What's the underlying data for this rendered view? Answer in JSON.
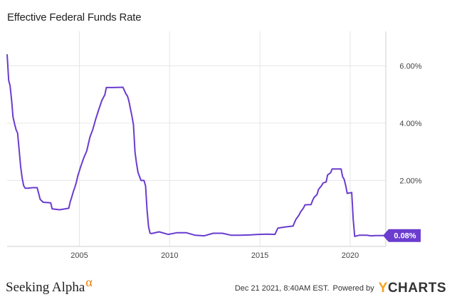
{
  "chart_data": {
    "type": "line",
    "title": "Effective Federal Funds Rate",
    "xlabel": "",
    "ylabel": "",
    "x_range": [
      "2001-01-01",
      "2021-12-21"
    ],
    "ylim": [
      -0.3,
      7.2
    ],
    "x_ticks": [
      "2005",
      "2010",
      "2015",
      "2020"
    ],
    "y_ticks": [
      "2.00%",
      "4.00%",
      "6.00%"
    ],
    "y_tick_values": [
      2,
      4,
      6
    ],
    "grid": "vertical and horizontal",
    "line_color": "#6a3ccf",
    "last_value_label": "0.08%",
    "series": [
      {
        "name": "",
        "points": [
          [
            "2001-01-01",
            6.4
          ],
          [
            "2001-02-01",
            5.49
          ],
          [
            "2001-03-01",
            5.31
          ],
          [
            "2001-04-01",
            4.8
          ],
          [
            "2001-05-01",
            4.21
          ],
          [
            "2001-06-01",
            3.97
          ],
          [
            "2001-07-01",
            3.77
          ],
          [
            "2001-08-01",
            3.65
          ],
          [
            "2001-09-01",
            3.07
          ],
          [
            "2001-10-01",
            2.49
          ],
          [
            "2001-11-01",
            2.09
          ],
          [
            "2001-12-01",
            1.82
          ],
          [
            "2002-01-01",
            1.73
          ],
          [
            "2002-03-01",
            1.73
          ],
          [
            "2002-06-01",
            1.75
          ],
          [
            "2002-09-01",
            1.75
          ],
          [
            "2002-11-01",
            1.34
          ],
          [
            "2003-01-01",
            1.24
          ],
          [
            "2003-06-01",
            1.22
          ],
          [
            "2003-07-01",
            1.01
          ],
          [
            "2003-12-01",
            0.98
          ],
          [
            "2004-06-01",
            1.03
          ],
          [
            "2004-07-01",
            1.26
          ],
          [
            "2004-08-01",
            1.43
          ],
          [
            "2004-09-01",
            1.61
          ],
          [
            "2004-10-01",
            1.76
          ],
          [
            "2004-11-01",
            1.93
          ],
          [
            "2004-12-01",
            2.16
          ],
          [
            "2005-02-01",
            2.5
          ],
          [
            "2005-04-01",
            2.79
          ],
          [
            "2005-06-01",
            3.04
          ],
          [
            "2005-08-01",
            3.5
          ],
          [
            "2005-10-01",
            3.78
          ],
          [
            "2005-12-01",
            4.16
          ],
          [
            "2006-02-01",
            4.49
          ],
          [
            "2006-04-01",
            4.79
          ],
          [
            "2006-06-01",
            4.99
          ],
          [
            "2006-07-01",
            5.24
          ],
          [
            "2006-12-01",
            5.24
          ],
          [
            "2007-06-01",
            5.25
          ],
          [
            "2007-08-01",
            5.02
          ],
          [
            "2007-09-01",
            4.94
          ],
          [
            "2007-10-01",
            4.76
          ],
          [
            "2007-11-01",
            4.49
          ],
          [
            "2007-12-01",
            4.24
          ],
          [
            "2008-01-01",
            3.94
          ],
          [
            "2008-02-01",
            2.98
          ],
          [
            "2008-03-01",
            2.61
          ],
          [
            "2008-04-01",
            2.28
          ],
          [
            "2008-06-01",
            2.0
          ],
          [
            "2008-08-01",
            2.0
          ],
          [
            "2008-09-01",
            1.81
          ],
          [
            "2008-10-01",
            0.97
          ],
          [
            "2008-11-01",
            0.39
          ],
          [
            "2008-12-01",
            0.16
          ],
          [
            "2009-01-01",
            0.15
          ],
          [
            "2009-06-01",
            0.21
          ],
          [
            "2009-12-01",
            0.12
          ],
          [
            "2010-06-01",
            0.18
          ],
          [
            "2010-12-01",
            0.18
          ],
          [
            "2011-06-01",
            0.09
          ],
          [
            "2011-12-01",
            0.07
          ],
          [
            "2012-06-01",
            0.16
          ],
          [
            "2012-12-01",
            0.16
          ],
          [
            "2013-06-01",
            0.09
          ],
          [
            "2013-12-01",
            0.09
          ],
          [
            "2014-06-01",
            0.1
          ],
          [
            "2014-12-01",
            0.12
          ],
          [
            "2015-06-01",
            0.13
          ],
          [
            "2015-11-01",
            0.12
          ],
          [
            "2015-12-01",
            0.24
          ],
          [
            "2016-01-01",
            0.34
          ],
          [
            "2016-06-01",
            0.38
          ],
          [
            "2016-11-01",
            0.41
          ],
          [
            "2016-12-01",
            0.54
          ],
          [
            "2017-01-01",
            0.65
          ],
          [
            "2017-03-01",
            0.79
          ],
          [
            "2017-04-01",
            0.9
          ],
          [
            "2017-06-01",
            1.04
          ],
          [
            "2017-07-01",
            1.15
          ],
          [
            "2017-11-01",
            1.16
          ],
          [
            "2017-12-01",
            1.3
          ],
          [
            "2018-01-01",
            1.41
          ],
          [
            "2018-03-01",
            1.51
          ],
          [
            "2018-04-01",
            1.69
          ],
          [
            "2018-06-01",
            1.82
          ],
          [
            "2018-07-01",
            1.91
          ],
          [
            "2018-09-01",
            1.95
          ],
          [
            "2018-10-01",
            2.19
          ],
          [
            "2018-12-01",
            2.27
          ],
          [
            "2019-01-01",
            2.4
          ],
          [
            "2019-07-01",
            2.4
          ],
          [
            "2019-08-01",
            2.13
          ],
          [
            "2019-09-01",
            2.04
          ],
          [
            "2019-10-01",
            1.83
          ],
          [
            "2019-11-01",
            1.55
          ],
          [
            "2020-02-01",
            1.58
          ],
          [
            "2020-03-01",
            0.65
          ],
          [
            "2020-04-01",
            0.05
          ],
          [
            "2020-07-01",
            0.09
          ],
          [
            "2020-12-01",
            0.09
          ],
          [
            "2021-03-01",
            0.07
          ],
          [
            "2021-06-01",
            0.08
          ],
          [
            "2021-09-01",
            0.08
          ],
          [
            "2021-12-01",
            0.08
          ]
        ]
      }
    ]
  },
  "footer": {
    "brand": "Seeking Alpha",
    "brand_symbol": "α",
    "timestamp": "Dec 21 2021, 8:40AM EST.",
    "powered_by": "Powered by",
    "provider": "CHARTS",
    "provider_prefix": "Y"
  },
  "colors": {
    "accent": "#6a3ccf",
    "grid": "#e6e6e6",
    "brand_alpha": "#f07c00",
    "ycharts_y": "#f4a21f"
  }
}
